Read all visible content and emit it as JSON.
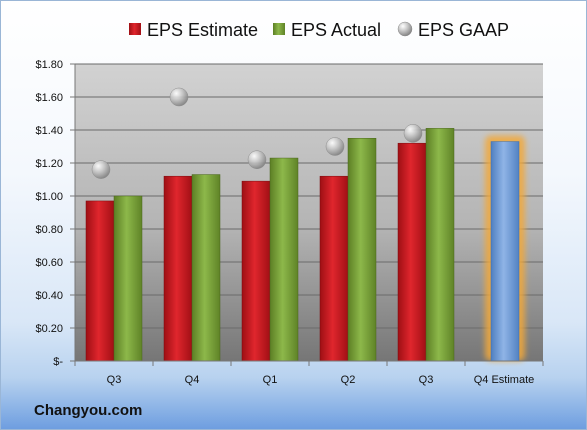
{
  "source": "Changyou.com",
  "colors": {
    "estimate": "#c4151c",
    "actual": "#77a033",
    "gaap": "#b9b9b9",
    "forecast": "#6c9bd8",
    "forecast_glow": "#f2a93b"
  },
  "chart_data": {
    "type": "bar",
    "categories": [
      "Q3",
      "Q4",
      "Q1",
      "Q2",
      "Q3",
      "Q4 Estimate"
    ],
    "series": [
      {
        "name": "EPS Estimate",
        "values": [
          0.97,
          1.12,
          1.09,
          1.12,
          1.32,
          1.33
        ]
      },
      {
        "name": "EPS Actual",
        "values": [
          1.0,
          1.13,
          1.23,
          1.35,
          1.41,
          null
        ]
      },
      {
        "name": "EPS GAAP",
        "values": [
          1.16,
          1.6,
          1.22,
          1.3,
          1.38,
          null
        ]
      }
    ],
    "ylim": [
      0,
      1.8
    ],
    "ytick_labels": [
      "$-",
      "$0.20",
      "$0.40",
      "$0.60",
      "$0.80",
      "$1.00",
      "$1.20",
      "$1.40",
      "$1.60",
      "$1.80"
    ],
    "grid": true,
    "legend_position": "top"
  }
}
